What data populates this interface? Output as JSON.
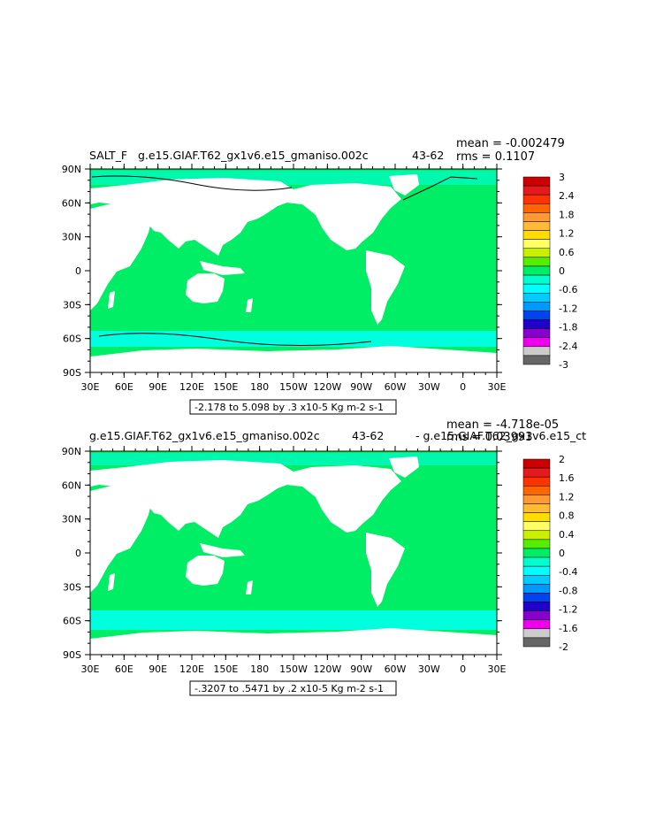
{
  "chart_data": [
    {
      "type": "heatmap",
      "title_left": "SALT_F",
      "title_main": "g.e15.GIAF.T62_gx1v6.e15_gmaniso.002c",
      "title_years": "43-62",
      "stats": {
        "mean": "mean = -0.002479",
        "rms": "rms = 0.1107"
      },
      "lat_ticks": [
        "90N",
        "60N",
        "30N",
        "0",
        "30S",
        "60S",
        "90S"
      ],
      "lon_ticks": [
        "30E",
        "60E",
        "90E",
        "120E",
        "150E",
        "180",
        "150W",
        "120W",
        "90W",
        "60W",
        "30W",
        "0",
        "30E"
      ],
      "range_label": "-2.178 to 5.098 by .3 x10-5 Kg m-2 s-1",
      "colorbar": {
        "labels": [
          "3",
          "2.4",
          "1.8",
          "1.2",
          "0.6",
          "0",
          "-0.6",
          "-1.2",
          "-1.8",
          "-2.4",
          "-3"
        ],
        "colors": [
          "#cc0000",
          "#e41a1c",
          "#ff3300",
          "#ff6600",
          "#ff9933",
          "#ffbb33",
          "#ffdd00",
          "#ffff66",
          "#c8f000",
          "#55ee00",
          "#00ee66",
          "#00ffcc",
          "#00ffff",
          "#00ccff",
          "#0099ff",
          "#0044ee",
          "#2200cc",
          "#8800cc",
          "#ee00ee",
          "#cccccc",
          "#666666"
        ]
      }
    },
    {
      "type": "heatmap",
      "title_main": "g.e15.GIAF.T62_gx1v6.e15_gmaniso.002c",
      "title_years": "43-62",
      "title_diff": "- g.e15.GIAF.T62_gx1v6.e15_ct",
      "stats": {
        "mean": "mean = -4.718e-05",
        "rms": "rms = 0.03993"
      },
      "lat_ticks": [
        "90N",
        "60N",
        "30N",
        "0",
        "30S",
        "60S",
        "90S"
      ],
      "lon_ticks": [
        "30E",
        "60E",
        "90E",
        "120E",
        "150E",
        "180",
        "150W",
        "120W",
        "90W",
        "60W",
        "30W",
        "0",
        "30E"
      ],
      "range_label": "-.3207 to .5471 by .2 x10-5 Kg m-2 s-1",
      "colorbar": {
        "labels": [
          "2",
          "1.6",
          "1.2",
          "0.8",
          "0.4",
          "0",
          "-0.4",
          "-0.8",
          "-1.2",
          "-1.6",
          "-2"
        ],
        "colors": [
          "#cc0000",
          "#e41a1c",
          "#ff3300",
          "#ff6600",
          "#ff9933",
          "#ffbb33",
          "#ffdd00",
          "#ffff66",
          "#c8f000",
          "#55ee00",
          "#00ee66",
          "#00ffcc",
          "#00ffff",
          "#00ccff",
          "#0099ff",
          "#0044ee",
          "#2200cc",
          "#8800cc",
          "#ee00ee",
          "#cccccc",
          "#666666"
        ]
      }
    }
  ],
  "colors": {
    "ocean_zero": "#00ee66",
    "ocean_neg": "#00ffdd",
    "land": "#ffffff"
  }
}
